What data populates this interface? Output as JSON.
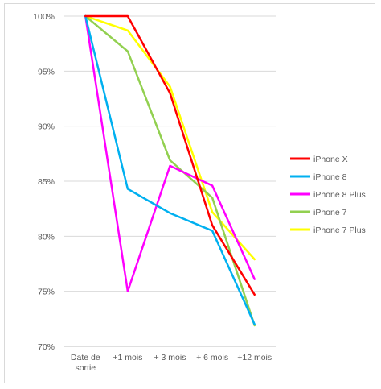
{
  "chart_data": {
    "type": "line",
    "categories": [
      "Date de sortie",
      "+1 mois",
      "+ 3 mois",
      "+ 6 mois",
      "+12 mois"
    ],
    "category_lines": [
      [
        "Date de",
        "sortie"
      ],
      [
        "+1 mois"
      ],
      [
        "+ 3 mois"
      ],
      [
        "+ 6 mois"
      ],
      [
        "+12 mois"
      ]
    ],
    "ylim": [
      70,
      100
    ],
    "yticks": [
      70,
      75,
      80,
      85,
      90,
      95,
      100
    ],
    "ytick_format": "percent",
    "grid": true,
    "legend_position": "right",
    "series": [
      {
        "name": "iPhone X",
        "color": "#ff0000",
        "values": [
          100,
          100,
          93.0,
          81.0,
          74.7
        ]
      },
      {
        "name": "iPhone 8",
        "color": "#00b0f0",
        "values": [
          100,
          84.3,
          82.1,
          80.5,
          72.0
        ]
      },
      {
        "name": "iPhone 8 Plus",
        "color": "#ff00ff",
        "values": [
          100,
          75.0,
          86.4,
          84.6,
          76.1
        ]
      },
      {
        "name": "iPhone 7",
        "color": "#92d050",
        "values": [
          100,
          96.8,
          86.9,
          83.5,
          71.9
        ]
      },
      {
        "name": "iPhone 7 Plus",
        "color": "#ffff00",
        "values": [
          100,
          98.7,
          93.6,
          82.2,
          77.9
        ]
      }
    ]
  }
}
